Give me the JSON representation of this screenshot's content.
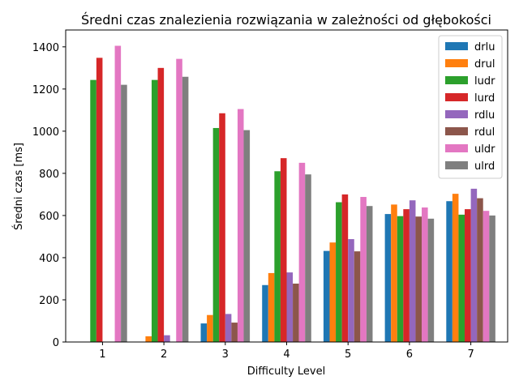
{
  "chart_data": {
    "type": "bar",
    "title": "Średni czas znalezienia rozwiązania w zależności od głębokości",
    "xlabel": "Difficulty Level",
    "ylabel": "Średni czas [ms]",
    "categories": [
      "1",
      "2",
      "3",
      "4",
      "5",
      "6",
      "7"
    ],
    "ylim": [
      0,
      1480
    ],
    "yticks": [
      0,
      200,
      400,
      600,
      800,
      1000,
      1200,
      1400
    ],
    "grid": false,
    "legend_position": "top-right",
    "series": [
      {
        "name": "drlu",
        "color": "#1f77b4",
        "values": [
          0,
          0,
          88,
          270,
          432,
          607,
          668
        ]
      },
      {
        "name": "drul",
        "color": "#ff7f0e",
        "values": [
          0,
          27,
          128,
          327,
          472,
          652,
          703
        ]
      },
      {
        "name": "ludr",
        "color": "#2ca02c",
        "values": [
          1243,
          1243,
          1015,
          810,
          663,
          597,
          604
        ]
      },
      {
        "name": "lurd",
        "color": "#d62728",
        "values": [
          1348,
          1300,
          1085,
          872,
          700,
          630,
          630
        ]
      },
      {
        "name": "rdlu",
        "color": "#9467bd",
        "values": [
          0,
          32,
          133,
          330,
          488,
          672,
          727
        ]
      },
      {
        "name": "rdul",
        "color": "#8c564b",
        "values": [
          0,
          0,
          92,
          277,
          430,
          595,
          682
        ]
      },
      {
        "name": "uldr",
        "color": "#e377c2",
        "values": [
          1405,
          1343,
          1105,
          850,
          688,
          638,
          622
        ]
      },
      {
        "name": "ulrd",
        "color": "#7f7f7f",
        "values": [
          1220,
          1258,
          1005,
          795,
          645,
          585,
          600
        ]
      }
    ]
  }
}
